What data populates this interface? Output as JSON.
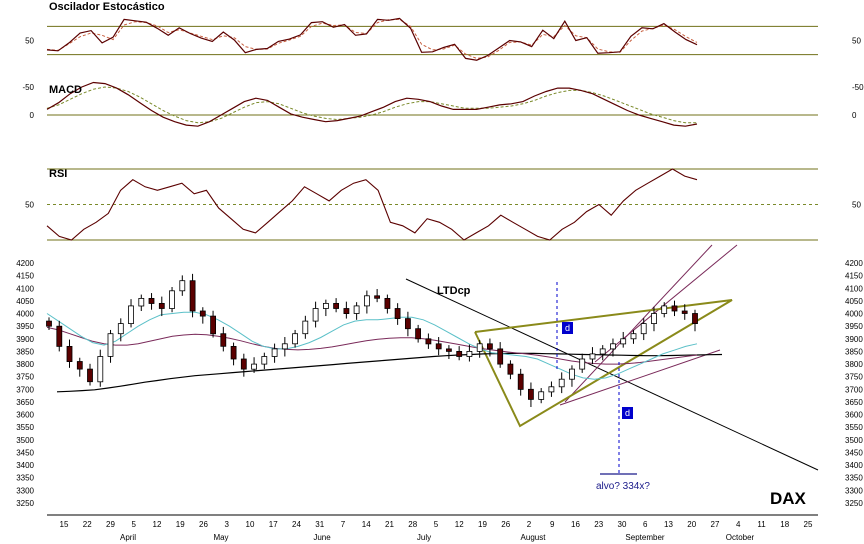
{
  "chart_data": [
    {
      "type": "line",
      "title": "Oscilador Estocástico",
      "ylim": [
        0,
        100
      ],
      "yticks": [
        "50"
      ],
      "reference_levels": [
        20,
        80
      ],
      "series": [
        {
          "values": [
            30,
            28,
            45,
            66,
            71,
            45,
            57,
            95,
            92,
            89,
            76,
            61,
            77,
            65,
            55,
            48,
            68,
            51,
            24,
            31,
            33,
            48,
            53,
            62,
            88,
            90,
            78,
            84,
            61,
            64,
            95,
            93,
            97,
            76,
            25,
            26,
            35,
            42,
            12,
            8,
            18,
            34,
            50,
            47,
            37,
            72,
            54,
            91,
            50,
            56,
            23,
            24,
            26,
            59,
            77,
            75,
            86,
            68,
            52,
            41
          ]
        },
        {
          "values": [
            31,
            29,
            43,
            58,
            66,
            61,
            52,
            83,
            90,
            88,
            81,
            67,
            73,
            66,
            59,
            52,
            60,
            56,
            37,
            31,
            32,
            44,
            51,
            59,
            80,
            87,
            82,
            83,
            67,
            65,
            88,
            94,
            95,
            80,
            42,
            30,
            32,
            40,
            21,
            12,
            15,
            29,
            46,
            47,
            40,
            63,
            58,
            82,
            60,
            56,
            32,
            26,
            25,
            50,
            70,
            76,
            83,
            73,
            58,
            46
          ]
        }
      ]
    },
    {
      "type": "line",
      "title": "MACD",
      "ylim": [
        -80,
        60
      ],
      "yticks": [
        "0",
        "-50"
      ],
      "reference_levels": [
        0
      ],
      "series": [
        {
          "values": [
            -10,
            -22,
            -38,
            -50,
            -58,
            -56,
            -48,
            -36,
            -22,
            -8,
            4,
            12,
            18,
            20,
            12,
            0,
            -12,
            -24,
            -30,
            -26,
            -14,
            -2,
            4,
            8,
            12,
            10,
            6,
            2,
            -6,
            -14,
            -24,
            -30,
            -28,
            -24,
            -16,
            -10,
            -10,
            -10,
            -14,
            -18,
            -20,
            -24,
            -34,
            -42,
            -48,
            -48,
            -44,
            -38,
            -28,
            -18,
            -8,
            0,
            6,
            12,
            18,
            20,
            16
          ]
        },
        {
          "values": [
            -12,
            -18,
            -28,
            -38,
            -46,
            -50,
            -48,
            -42,
            -32,
            -20,
            -8,
            2,
            10,
            14,
            12,
            6,
            -4,
            -14,
            -22,
            -24,
            -20,
            -12,
            -4,
            2,
            6,
            8,
            6,
            4,
            0,
            -6,
            -14,
            -20,
            -24,
            -24,
            -20,
            -16,
            -12,
            -12,
            -12,
            -14,
            -16,
            -20,
            -26,
            -34,
            -40,
            -44,
            -44,
            -40,
            -34,
            -26,
            -18,
            -10,
            -2,
            4,
            10,
            14,
            14
          ]
        }
      ]
    },
    {
      "type": "line",
      "title": "RSI",
      "ylim": [
        20,
        80
      ],
      "yticks": [
        "50"
      ],
      "reference_levels": [
        30,
        50,
        70
      ],
      "series": [
        {
          "values": [
            38,
            32,
            30,
            36,
            40,
            45,
            58,
            64,
            60,
            58,
            60,
            62,
            56,
            58,
            48,
            42,
            36,
            34,
            40,
            46,
            52,
            60,
            56,
            52,
            58,
            62,
            64,
            58,
            40,
            38,
            34,
            42,
            40,
            36,
            30,
            34,
            38,
            44,
            40,
            36,
            32,
            30,
            36,
            40,
            46,
            50,
            44,
            52,
            58,
            62,
            66,
            70,
            66,
            64
          ]
        }
      ]
    },
    {
      "type": "line",
      "title": "DAX",
      "y_tick_labels": [
        "4200",
        "4150",
        "4100",
        "4050",
        "4000",
        "3950",
        "3900",
        "3850",
        "3800",
        "3750",
        "3700",
        "3650",
        "3600",
        "3550",
        "3500",
        "3450",
        "3400",
        "3350",
        "3300",
        "3250"
      ],
      "ylim": [
        3225,
        4200
      ],
      "x_tick_labels": [
        "15",
        "22",
        "29",
        "5",
        "12",
        "19",
        "26",
        "3",
        "10",
        "17",
        "24",
        "31",
        "7",
        "14",
        "21",
        "28",
        "5",
        "12",
        "19",
        "26",
        "2",
        "9",
        "16",
        "23",
        "30",
        "6",
        "13",
        "20",
        "27",
        "4",
        "11",
        "18",
        "25"
      ],
      "month_labels": [
        "April",
        "May",
        "June",
        "July",
        "August",
        "September",
        "October"
      ],
      "series": [
        {
          "values": [
            3950,
            3870,
            3810,
            3780,
            3730,
            3830,
            3920,
            3960,
            4030,
            4060,
            4040,
            4020,
            4090,
            4130,
            4010,
            3990,
            3920,
            3870,
            3820,
            3780,
            3800,
            3830,
            3860,
            3880,
            3920,
            3970,
            4020,
            4040,
            4020,
            4000,
            4030,
            4070,
            4060,
            4020,
            3980,
            3940,
            3900,
            3880,
            3860,
            3850,
            3830,
            3850,
            3880,
            3860,
            3800,
            3760,
            3700,
            3660,
            3690,
            3710,
            3740,
            3780,
            3820,
            3840,
            3860,
            3880,
            3900,
            3920,
            3960,
            4000,
            4030,
            4010,
            4000,
            3960
          ]
        },
        {
          "values": [
            4000,
            3970,
            3940,
            3910,
            3885,
            3875,
            3890,
            3920,
            3950,
            3975,
            3995,
            4000,
            4005,
            4005,
            3995,
            3975,
            3950,
            3920,
            3890,
            3870,
            3860,
            3860,
            3870,
            3885,
            3905,
            3930,
            3955,
            3970,
            3975,
            3975,
            3980,
            3985,
            3985,
            3975,
            3955,
            3930,
            3905,
            3880,
            3860,
            3845,
            3840,
            3835,
            3830,
            3820,
            3800,
            3780,
            3760,
            3745,
            3740,
            3745,
            3760,
            3780,
            3800,
            3820,
            3840,
            3855,
            3870,
            3880
          ]
        },
        {
          "values": [
            3945,
            3935,
            3920,
            3905,
            3890,
            3880,
            3875,
            3875,
            3880,
            3890,
            3900,
            3910,
            3915,
            3918,
            3916,
            3910,
            3902,
            3892,
            3880,
            3870,
            3862,
            3858,
            3856,
            3858,
            3862,
            3868,
            3876,
            3884,
            3892,
            3898,
            3902,
            3904,
            3904,
            3900,
            3894,
            3886,
            3878,
            3870,
            3862,
            3856,
            3850,
            3845,
            3840,
            3835,
            3828,
            3820,
            3812,
            3806,
            3802,
            3800,
            3800,
            3802,
            3806,
            3812,
            3818,
            3824,
            3830,
            3836
          ]
        },
        {
          "values": [
            3690,
            3692,
            3695,
            3698,
            3705,
            3712,
            3720,
            3728,
            3735,
            3742,
            3748,
            3754,
            3758,
            3762,
            3766,
            3770,
            3774,
            3778,
            3782,
            3786,
            3790,
            3794,
            3798,
            3802,
            3806,
            3810,
            3814,
            3818,
            3822,
            3826,
            3830,
            3833,
            3836,
            3838,
            3840,
            3841,
            3842,
            3842,
            3842,
            3841,
            3840,
            3839,
            3838,
            3837,
            3836,
            3835,
            3834,
            3833,
            3833,
            3834,
            3835,
            3836,
            3837,
            3838
          ]
        }
      ]
    }
  ],
  "annotations": {
    "trendline_label": "LTDcp",
    "target_label": "alvo? 334x?",
    "marker_upper": "d",
    "marker_lower": "d",
    "index_name": "DAX"
  },
  "colors": {
    "price_line": "#5b0000",
    "signal_line": "#c86040",
    "dashed_signal": "#7a8a2a",
    "level_line": "#707018",
    "triangle": "#8a8a1a",
    "blue_marker": "#0000cc",
    "target_line": "#1a1a8a",
    "ma_fast": "#5bc0c8",
    "ma_mid": "#7a2a5a",
    "ma_slow": "#000000"
  }
}
